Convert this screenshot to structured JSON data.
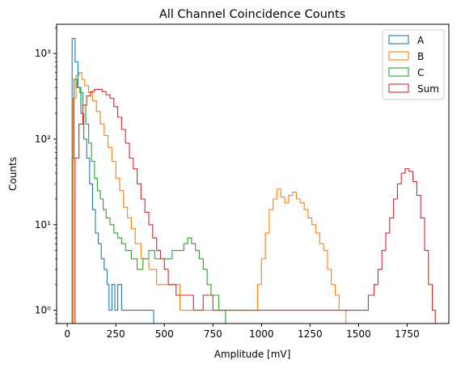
{
  "chart_data": {
    "type": "histogram-step",
    "title": "All Channel Coincidence Counts",
    "xlabel": "Amplitude [mV]",
    "ylabel": "Counts",
    "xlim": [
      -55,
      1965
    ],
    "ylim": [
      0.7,
      2200
    ],
    "yscale": "log",
    "grid": false,
    "legend_position": "top-right",
    "xticks": [
      0,
      250,
      500,
      750,
      1000,
      1250,
      1500,
      1750
    ],
    "xtick_labels": [
      "0",
      "250",
      "500",
      "750",
      "1000",
      "1250",
      "1500",
      "1750"
    ],
    "yticks": [
      1,
      10,
      100,
      1000
    ],
    "ytick_labels": [
      "10⁰",
      "10¹",
      "10²",
      "10³"
    ],
    "series": [
      {
        "name": "A",
        "color": "#1f77b4",
        "points": [
          [
            25,
            1500
          ],
          [
            40,
            800
          ],
          [
            55,
            400
          ],
          [
            70,
            200
          ],
          [
            85,
            100
          ],
          [
            100,
            60
          ],
          [
            115,
            30
          ],
          [
            130,
            15
          ],
          [
            145,
            8
          ],
          [
            160,
            6
          ],
          [
            175,
            4
          ],
          [
            190,
            3
          ],
          [
            205,
            2
          ],
          [
            215,
            1
          ],
          [
            230,
            2
          ],
          [
            245,
            1
          ],
          [
            260,
            2
          ],
          [
            280,
            1
          ],
          [
            300,
            1
          ],
          [
            330,
            1
          ],
          [
            360,
            1
          ],
          [
            400,
            1
          ],
          [
            430,
            1
          ]
        ]
      },
      {
        "name": "B",
        "color": "#ff7f0e",
        "points": [
          [
            30,
            300
          ],
          [
            45,
            550
          ],
          [
            60,
            600
          ],
          [
            75,
            500
          ],
          [
            90,
            420
          ],
          [
            110,
            350
          ],
          [
            130,
            280
          ],
          [
            150,
            210
          ],
          [
            170,
            150
          ],
          [
            190,
            110
          ],
          [
            210,
            80
          ],
          [
            230,
            55
          ],
          [
            250,
            35
          ],
          [
            270,
            25
          ],
          [
            290,
            16
          ],
          [
            310,
            12
          ],
          [
            330,
            9
          ],
          [
            350,
            6
          ],
          [
            380,
            4
          ],
          [
            420,
            3
          ],
          [
            460,
            2
          ],
          [
            520,
            2
          ],
          [
            580,
            1
          ],
          [
            650,
            1
          ],
          [
            720,
            1
          ],
          [
            800,
            1
          ],
          [
            880,
            1
          ],
          [
            940,
            1
          ],
          [
            980,
            2
          ],
          [
            1000,
            4
          ],
          [
            1020,
            8
          ],
          [
            1040,
            15
          ],
          [
            1060,
            20
          ],
          [
            1080,
            26
          ],
          [
            1100,
            21
          ],
          [
            1120,
            18
          ],
          [
            1140,
            22
          ],
          [
            1160,
            24
          ],
          [
            1180,
            20
          ],
          [
            1200,
            18
          ],
          [
            1220,
            15
          ],
          [
            1240,
            12
          ],
          [
            1260,
            10
          ],
          [
            1280,
            8
          ],
          [
            1300,
            6
          ],
          [
            1320,
            5
          ],
          [
            1340,
            3
          ],
          [
            1360,
            2
          ],
          [
            1380,
            1.5
          ],
          [
            1400,
            1
          ],
          [
            1420,
            1
          ]
        ]
      },
      {
        "name": "C",
        "color": "#2ca02c",
        "points": [
          [
            25,
            60
          ],
          [
            35,
            500
          ],
          [
            50,
            400
          ],
          [
            65,
            350
          ],
          [
            80,
            250
          ],
          [
            95,
            150
          ],
          [
            110,
            90
          ],
          [
            125,
            55
          ],
          [
            140,
            35
          ],
          [
            155,
            25
          ],
          [
            170,
            20
          ],
          [
            185,
            15
          ],
          [
            200,
            12
          ],
          [
            220,
            10
          ],
          [
            240,
            8
          ],
          [
            260,
            7
          ],
          [
            280,
            6
          ],
          [
            300,
            5
          ],
          [
            330,
            4
          ],
          [
            360,
            3
          ],
          [
            390,
            4
          ],
          [
            420,
            5
          ],
          [
            450,
            4
          ],
          [
            480,
            4
          ],
          [
            510,
            4
          ],
          [
            540,
            5
          ],
          [
            570,
            5
          ],
          [
            600,
            6
          ],
          [
            620,
            7
          ],
          [
            640,
            6
          ],
          [
            660,
            5
          ],
          [
            680,
            4
          ],
          [
            700,
            3
          ],
          [
            720,
            2
          ],
          [
            740,
            1.5
          ],
          [
            760,
            1.5
          ],
          [
            780,
            1
          ],
          [
            800,
            1
          ]
        ]
      },
      {
        "name": "Sum",
        "color": "#d62728",
        "points": [
          [
            40,
            60
          ],
          [
            60,
            150
          ],
          [
            80,
            250
          ],
          [
            100,
            320
          ],
          [
            120,
            360
          ],
          [
            140,
            380
          ],
          [
            160,
            380
          ],
          [
            180,
            360
          ],
          [
            200,
            330
          ],
          [
            220,
            300
          ],
          [
            240,
            240
          ],
          [
            260,
            180
          ],
          [
            280,
            130
          ],
          [
            300,
            90
          ],
          [
            320,
            60
          ],
          [
            340,
            45
          ],
          [
            360,
            30
          ],
          [
            380,
            20
          ],
          [
            400,
            14
          ],
          [
            420,
            10
          ],
          [
            440,
            7
          ],
          [
            460,
            5
          ],
          [
            480,
            4
          ],
          [
            500,
            3
          ],
          [
            520,
            2
          ],
          [
            540,
            2
          ],
          [
            560,
            1.5
          ],
          [
            600,
            1.5
          ],
          [
            650,
            1
          ],
          [
            700,
            1.5
          ],
          [
            750,
            1
          ],
          [
            800,
            1
          ],
          [
            850,
            1
          ],
          [
            900,
            1
          ],
          [
            1000,
            1
          ],
          [
            1100,
            1
          ],
          [
            1200,
            1
          ],
          [
            1300,
            1
          ],
          [
            1400,
            1
          ],
          [
            1500,
            1
          ],
          [
            1550,
            1.5
          ],
          [
            1580,
            2
          ],
          [
            1600,
            3
          ],
          [
            1620,
            5
          ],
          [
            1640,
            8
          ],
          [
            1660,
            12
          ],
          [
            1680,
            20
          ],
          [
            1700,
            30
          ],
          [
            1720,
            40
          ],
          [
            1740,
            45
          ],
          [
            1760,
            42
          ],
          [
            1780,
            32
          ],
          [
            1800,
            22
          ],
          [
            1820,
            12
          ],
          [
            1840,
            5
          ],
          [
            1860,
            2
          ],
          [
            1880,
            1
          ]
        ]
      }
    ]
  }
}
